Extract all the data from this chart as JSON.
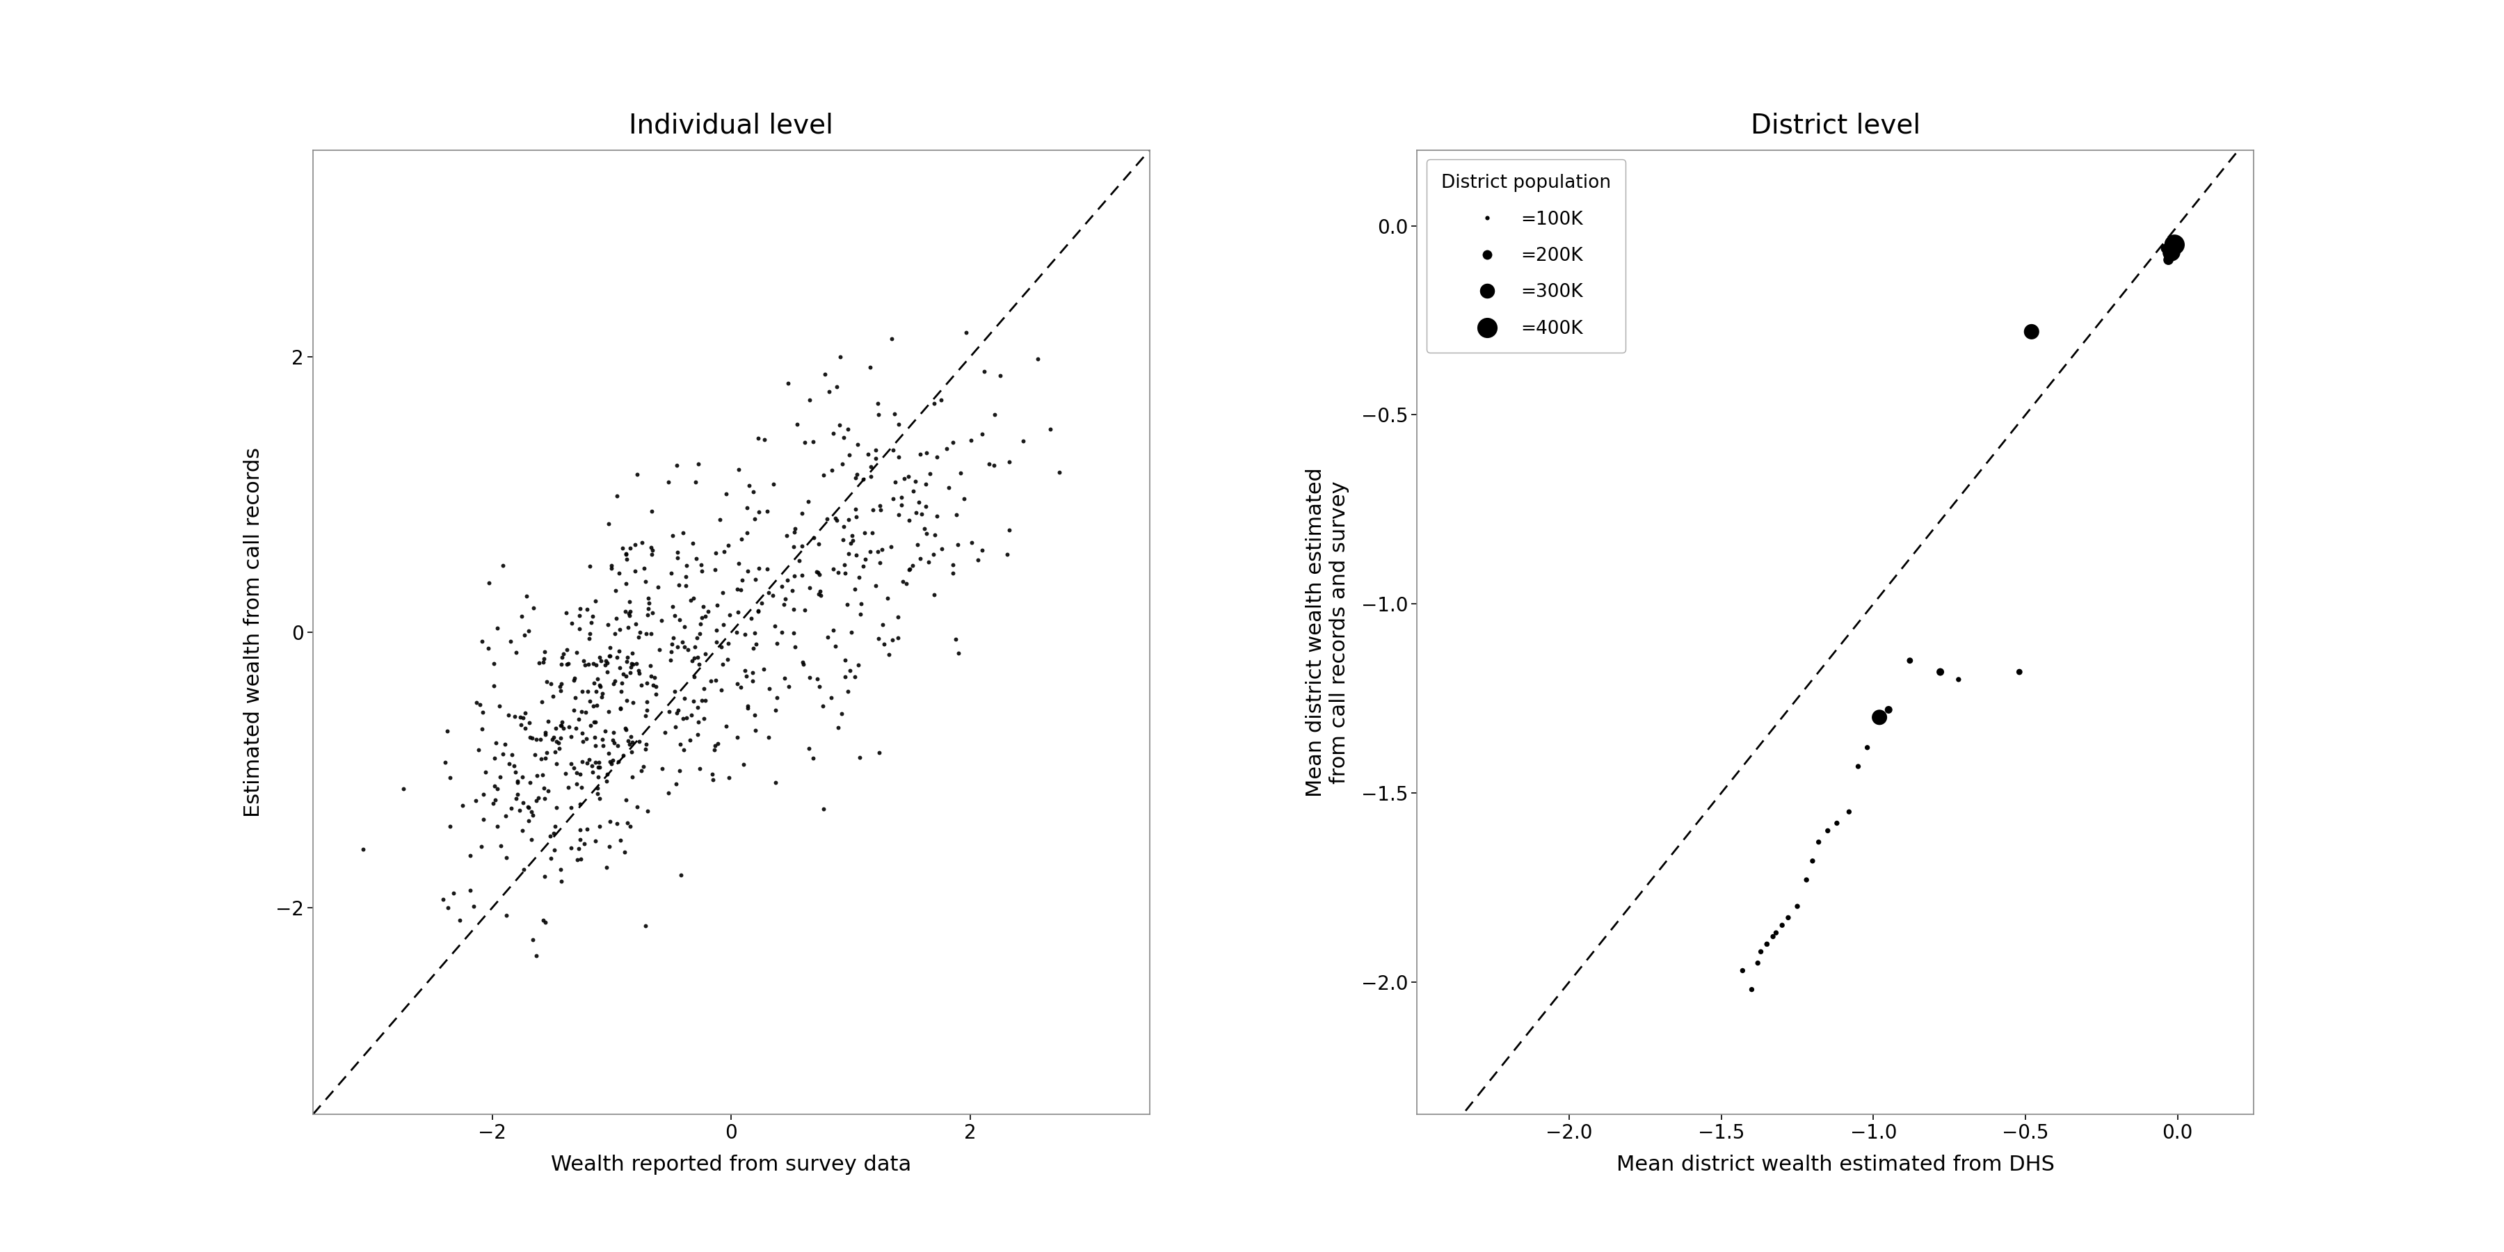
{
  "left_title": "Individual level",
  "left_xlabel": "Wealth reported from survey data",
  "left_ylabel": "Estimated wealth from call records",
  "left_xlim": [
    -3.5,
    3.5
  ],
  "left_ylim": [
    -3.5,
    3.5
  ],
  "left_xticks": [
    -2,
    0,
    2
  ],
  "left_yticks": [
    -2,
    0,
    2
  ],
  "right_title": "District level",
  "right_xlabel": "Mean district wealth estimated from DHS",
  "right_ylabel": "Mean district wealth estimated\nfrom call records and survey",
  "right_xlim": [
    -2.5,
    0.25
  ],
  "right_ylim": [
    -2.35,
    0.2
  ],
  "right_xticks": [
    -2.0,
    -1.5,
    -1.0,
    -0.5,
    0.0
  ],
  "right_yticks": [
    -2.0,
    -1.5,
    -1.0,
    -0.5,
    0.0
  ],
  "district_x": [
    -0.01,
    -0.02,
    -0.03,
    -0.04,
    -0.48,
    -0.52,
    -0.72,
    -0.78,
    -0.88,
    -0.95,
    -0.98,
    -1.02,
    -1.05,
    -1.08,
    -1.12,
    -1.15,
    -1.18,
    -1.2,
    -1.22,
    -1.25,
    -1.28,
    -1.3,
    -1.32,
    -1.35,
    -1.38,
    -1.4,
    -1.43,
    -1.37,
    -1.35,
    -1.33
  ],
  "district_y": [
    -0.05,
    -0.07,
    -0.09,
    -0.06,
    -0.28,
    -1.18,
    -1.2,
    -1.18,
    -1.15,
    -1.28,
    -1.3,
    -1.38,
    -1.43,
    -1.55,
    -1.58,
    -1.6,
    -1.63,
    -1.68,
    -1.73,
    -1.8,
    -1.83,
    -1.85,
    -1.87,
    -1.9,
    -1.95,
    -2.02,
    -1.97,
    -1.92,
    -1.9,
    -1.88
  ],
  "district_pop_k": [
    400,
    350,
    200,
    180,
    300,
    120,
    100,
    150,
    120,
    150,
    300,
    100,
    100,
    100,
    100,
    100,
    100,
    100,
    100,
    100,
    100,
    100,
    100,
    100,
    100,
    100,
    100,
    100,
    100,
    100
  ],
  "legend_pop_k": [
    100,
    200,
    300,
    400
  ],
  "legend_labels": [
    "=100K",
    "=200K",
    "=300K",
    "=400K"
  ],
  "legend_title": "District population",
  "background_color": "white",
  "dot_color": "black",
  "title_fontsize": 28,
  "label_fontsize": 22,
  "tick_fontsize": 20,
  "legend_fontsize": 19
}
